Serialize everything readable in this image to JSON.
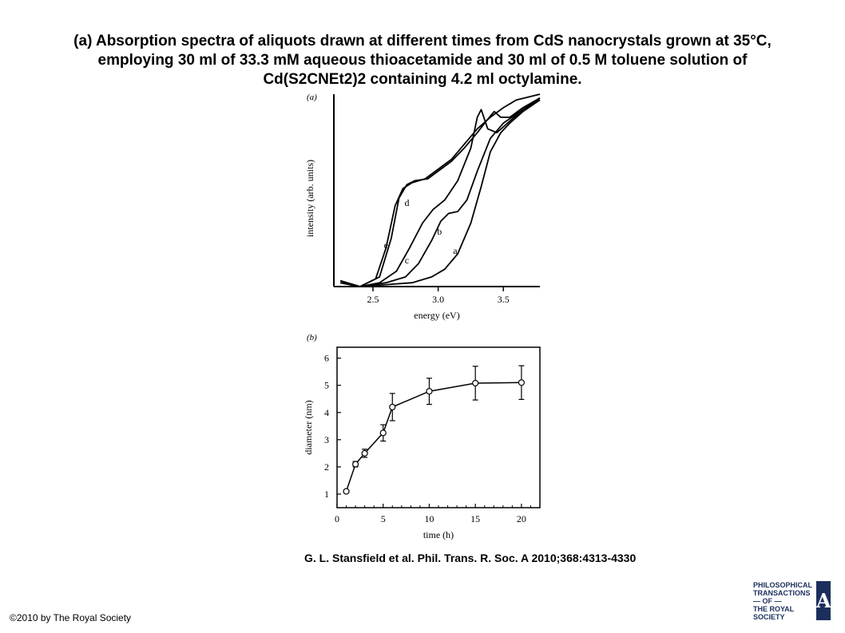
{
  "slide": {
    "title_lines": [
      "(a) Absorption spectra of aliquots drawn at different times from CdS nanocrystals grown at 35°C,",
      "employing 30 ml of 33.3 mM aqueous thioacetamide and 30 ml of 0.5 M toluene solution of",
      "Cd(S2CNEt2)2 containing 4.2 ml octylamine."
    ],
    "citation": "G. L. Stansfield et al. Phil. Trans. R. Soc. A 2010;368:4313-4330",
    "copyright": "©2010 by The Royal Society",
    "logo_lines": [
      "Philosophical",
      "Transactions",
      "— of —",
      "The Royal",
      "Society"
    ],
    "logo_letter": "A"
  },
  "chart_data": [
    {
      "type": "line",
      "panel_label": "(a)",
      "xlabel": "energy (eV)",
      "ylabel": "intensity (arb. units)",
      "xlim": [
        2.2,
        3.78
      ],
      "ylim": [
        0,
        1
      ],
      "x_ticks": [
        2.5,
        3.0,
        3.5
      ],
      "x_tick_labels": [
        "2.5",
        "3.0",
        "3.5"
      ],
      "y_ticks": [],
      "colors": {
        "line": "#000000"
      },
      "series": [
        {
          "name": "a",
          "label_at": [
            3.13,
            0.17
          ],
          "points": [
            [
              2.25,
              0.03
            ],
            [
              2.4,
              0.0
            ],
            [
              2.6,
              0.01
            ],
            [
              2.8,
              0.02
            ],
            [
              2.95,
              0.05
            ],
            [
              3.05,
              0.09
            ],
            [
              3.15,
              0.17
            ],
            [
              3.25,
              0.33
            ],
            [
              3.33,
              0.52
            ],
            [
              3.4,
              0.7
            ],
            [
              3.48,
              0.8
            ],
            [
              3.55,
              0.85
            ],
            [
              3.65,
              0.91
            ],
            [
              3.78,
              0.97
            ]
          ]
        },
        {
          "name": "b",
          "label_at": [
            3.01,
            0.27
          ],
          "points": [
            [
              2.25,
              0.02
            ],
            [
              2.4,
              0.0
            ],
            [
              2.6,
              0.02
            ],
            [
              2.75,
              0.05
            ],
            [
              2.85,
              0.12
            ],
            [
              2.95,
              0.24
            ],
            [
              3.02,
              0.34
            ],
            [
              3.08,
              0.38
            ],
            [
              3.15,
              0.39
            ],
            [
              3.22,
              0.45
            ],
            [
              3.3,
              0.6
            ],
            [
              3.4,
              0.77
            ],
            [
              3.5,
              0.85
            ],
            [
              3.65,
              0.92
            ],
            [
              3.78,
              0.98
            ]
          ]
        },
        {
          "name": "c",
          "label_at": [
            2.76,
            0.12
          ],
          "points": [
            [
              2.25,
              0.02
            ],
            [
              2.4,
              0.0
            ],
            [
              2.55,
              0.02
            ],
            [
              2.68,
              0.08
            ],
            [
              2.78,
              0.2
            ],
            [
              2.88,
              0.33
            ],
            [
              2.96,
              0.4
            ],
            [
              3.05,
              0.45
            ],
            [
              3.15,
              0.55
            ],
            [
              3.25,
              0.72
            ],
            [
              3.3,
              0.88
            ],
            [
              3.33,
              0.92
            ],
            [
              3.38,
              0.82
            ],
            [
              3.45,
              0.8
            ],
            [
              3.55,
              0.86
            ],
            [
              3.65,
              0.92
            ],
            [
              3.78,
              0.97
            ]
          ]
        },
        {
          "name": "d",
          "label_at": [
            2.76,
            0.42
          ],
          "points": [
            [
              2.25,
              0.02
            ],
            [
              2.4,
              0.0
            ],
            [
              2.55,
              0.05
            ],
            [
              2.64,
              0.25
            ],
            [
              2.7,
              0.46
            ],
            [
              2.76,
              0.53
            ],
            [
              2.82,
              0.55
            ],
            [
              2.92,
              0.56
            ],
            [
              3.0,
              0.6
            ],
            [
              3.1,
              0.65
            ],
            [
              3.2,
              0.72
            ],
            [
              3.3,
              0.8
            ],
            [
              3.38,
              0.87
            ],
            [
              3.43,
              0.91
            ],
            [
              3.48,
              0.88
            ],
            [
              3.55,
              0.88
            ],
            [
              3.65,
              0.93
            ],
            [
              3.78,
              0.98
            ]
          ]
        },
        {
          "name": "e",
          "label_at": [
            2.6,
            0.2
          ],
          "points": [
            [
              2.25,
              0.03
            ],
            [
              2.4,
              0.0
            ],
            [
              2.52,
              0.04
            ],
            [
              2.6,
              0.2
            ],
            [
              2.67,
              0.42
            ],
            [
              2.73,
              0.51
            ],
            [
              2.8,
              0.54
            ],
            [
              2.9,
              0.56
            ],
            [
              3.0,
              0.61
            ],
            [
              3.1,
              0.66
            ],
            [
              3.2,
              0.74
            ],
            [
              3.3,
              0.82
            ],
            [
              3.4,
              0.88
            ],
            [
              3.5,
              0.93
            ],
            [
              3.6,
              0.97
            ],
            [
              3.78,
              1.0
            ]
          ]
        }
      ]
    },
    {
      "type": "scatter",
      "panel_label": "(b)",
      "xlabel": "time (h)",
      "ylabel": "diameter (nm)",
      "xlim": [
        0,
        22
      ],
      "ylim": [
        0.5,
        6.4
      ],
      "x_ticks": [
        0,
        5,
        10,
        15,
        20
      ],
      "x_tick_labels": [
        "0",
        "5",
        "10",
        "15",
        "20"
      ],
      "y_ticks": [
        1,
        2,
        3,
        4,
        5,
        6
      ],
      "y_tick_labels": [
        "1",
        "2",
        "3",
        "4",
        "5",
        "6"
      ],
      "colors": {
        "line": "#000000",
        "marker_fill": "#ffffff"
      },
      "series": [
        {
          "x": [
            1,
            2,
            3,
            5,
            6,
            10,
            15,
            20
          ],
          "y": [
            1.1,
            2.1,
            2.5,
            3.25,
            4.2,
            4.78,
            5.08,
            5.1
          ],
          "err": [
            0.05,
            0.1,
            0.15,
            0.3,
            0.5,
            0.48,
            0.62,
            0.62
          ]
        }
      ]
    }
  ]
}
